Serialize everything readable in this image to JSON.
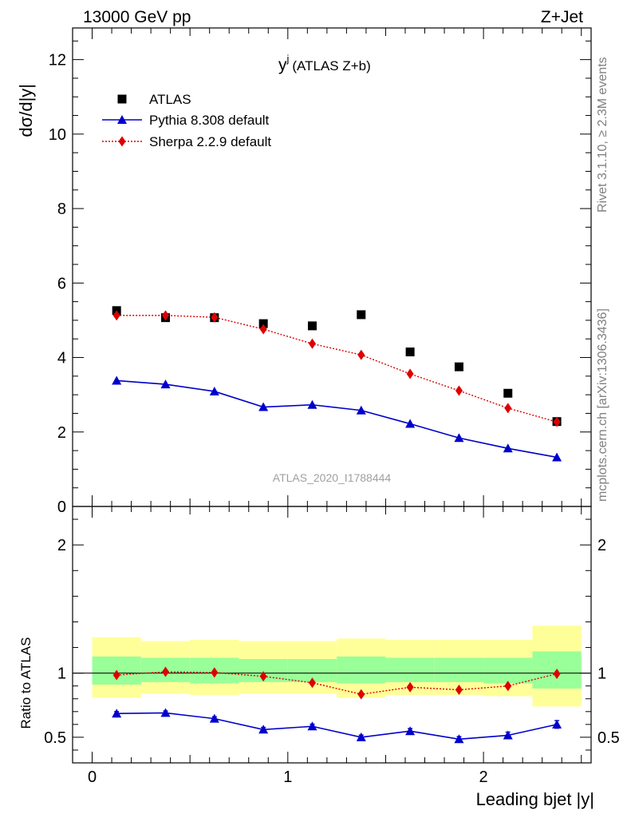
{
  "header": {
    "left": "13000 GeV pp",
    "right": "Z+Jet"
  },
  "side_labels": {
    "rivet": "Rivet 3.1.10, ≥ 2.3M events",
    "mcplots": "mcplots.cern.ch [arXiv:1306.3436]"
  },
  "watermark": "ATLAS_2020_I1788444",
  "colors": {
    "atlas": "#000000",
    "pythia": "#0000cc",
    "sherpa": "#dd0000",
    "band_inner": "#99ff99",
    "band_outer": "#ffff99"
  },
  "chart_data": [
    {
      "type": "scatter",
      "panel": "main",
      "title": "y^j (ATLAS Z+b)",
      "title_main": "y",
      "title_sup": "j",
      "title_rest": "(ATLAS Z+b)",
      "ylabel": "dσ/d|y|",
      "xlabel": "",
      "xlim": [
        -0.1,
        2.55
      ],
      "ylim": [
        0,
        12.85
      ],
      "yticks": [
        0,
        2,
        4,
        6,
        8,
        10,
        12
      ],
      "ytick_labels": [
        "0",
        "2",
        "4",
        "6",
        "8",
        "10",
        "12"
      ],
      "x": [
        0.125,
        0.375,
        0.625,
        0.875,
        1.125,
        1.375,
        1.625,
        1.875,
        2.125,
        2.375
      ],
      "series": [
        {
          "name": "ATLAS",
          "style": "square-markers",
          "values": [
            5.26,
            5.07,
            5.07,
            4.91,
            4.85,
            5.15,
            4.15,
            3.75,
            3.04,
            2.28
          ]
        },
        {
          "name": "Pythia 8.308 default",
          "style": "solid-triangles",
          "values": [
            3.38,
            3.28,
            3.09,
            2.67,
            2.73,
            2.58,
            2.22,
            1.84,
            1.56,
            1.32
          ]
        },
        {
          "name": "Sherpa 2.2.9 default",
          "style": "dotted-diamonds",
          "values": [
            5.13,
            5.13,
            5.08,
            4.76,
            4.37,
            4.07,
            3.56,
            3.11,
            2.64,
            2.27
          ]
        }
      ],
      "legend_position": "top-left"
    },
    {
      "type": "line",
      "panel": "ratio",
      "ylabel": "Ratio to ATLAS",
      "xlabel": "Leading bjet |y|",
      "xlim": [
        -0.1,
        2.55
      ],
      "ylim": [
        0.3,
        2.3
      ],
      "xticks": [
        0,
        1,
        2
      ],
      "xtick_labels": [
        "0",
        "1",
        "2"
      ],
      "yticks": [
        0.5,
        1,
        2
      ],
      "ytick_labels": [
        "0.5",
        "1",
        "2"
      ],
      "bin_edges": [
        0,
        0.25,
        0.5,
        0.75,
        1.0,
        1.25,
        1.5,
        1.75,
        2.0,
        2.25,
        2.5
      ],
      "band_inner": {
        "lo": [
          0.91,
          0.93,
          0.92,
          0.93,
          0.93,
          0.92,
          0.93,
          0.93,
          0.92,
          0.88
        ],
        "hi": [
          1.13,
          1.12,
          1.12,
          1.11,
          1.11,
          1.13,
          1.12,
          1.12,
          1.12,
          1.17
        ]
      },
      "band_outer": {
        "lo": [
          0.81,
          0.84,
          0.83,
          0.84,
          0.84,
          0.81,
          0.83,
          0.83,
          0.82,
          0.74
        ],
        "hi": [
          1.28,
          1.25,
          1.26,
          1.25,
          1.25,
          1.27,
          1.26,
          1.26,
          1.26,
          1.37
        ]
      },
      "x": [
        0.125,
        0.375,
        0.625,
        0.875,
        1.125,
        1.375,
        1.625,
        1.875,
        2.125,
        2.375
      ],
      "series": [
        {
          "name": "Pythia 8.308 default",
          "values": [
            0.685,
            0.69,
            0.645,
            0.56,
            0.585,
            0.5,
            0.548,
            0.485,
            0.515,
            0.6
          ],
          "errors": [
            0.015,
            0.015,
            0.015,
            0.017,
            0.017,
            0.017,
            0.02,
            0.02,
            0.025,
            0.03
          ]
        },
        {
          "name": "Sherpa 2.2.9 default",
          "values": [
            0.985,
            1.01,
            1.005,
            0.975,
            0.925,
            0.835,
            0.89,
            0.87,
            0.9,
            0.995
          ]
        }
      ]
    }
  ]
}
